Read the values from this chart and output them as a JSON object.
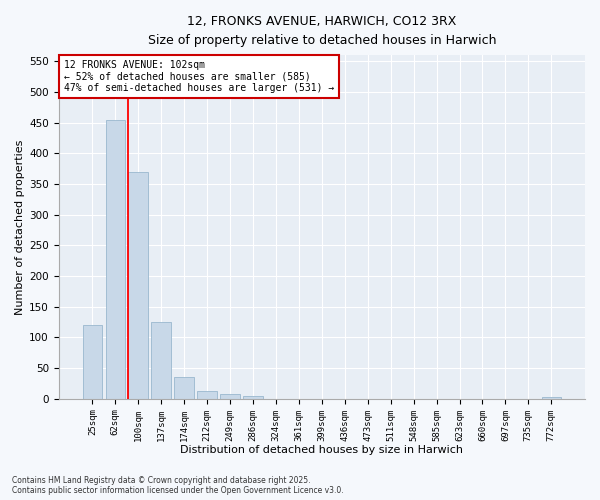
{
  "title_line1": "12, FRONKS AVENUE, HARWICH, CO12 3RX",
  "title_line2": "Size of property relative to detached houses in Harwich",
  "xlabel": "Distribution of detached houses by size in Harwich",
  "ylabel": "Number of detached properties",
  "categories": [
    "25sqm",
    "62sqm",
    "100sqm",
    "137sqm",
    "174sqm",
    "212sqm",
    "249sqm",
    "286sqm",
    "324sqm",
    "361sqm",
    "399sqm",
    "436sqm",
    "473sqm",
    "511sqm",
    "548sqm",
    "585sqm",
    "623sqm",
    "660sqm",
    "697sqm",
    "735sqm",
    "772sqm"
  ],
  "values": [
    120,
    455,
    370,
    125,
    35,
    13,
    8,
    5,
    0,
    0,
    0,
    0,
    0,
    0,
    0,
    0,
    0,
    0,
    0,
    0,
    3
  ],
  "bar_color": "#c8d8e8",
  "bar_edge_color": "#9ab8ce",
  "red_line_index": 2,
  "ylim": [
    0,
    560
  ],
  "yticks": [
    0,
    50,
    100,
    150,
    200,
    250,
    300,
    350,
    400,
    450,
    500,
    550
  ],
  "annotation_text": "12 FRONKS AVENUE: 102sqm\n← 52% of detached houses are smaller (585)\n47% of semi-detached houses are larger (531) →",
  "annotation_box_color": "#ffffff",
  "annotation_box_edge": "#cc0000",
  "footer_line1": "Contains HM Land Registry data © Crown copyright and database right 2025.",
  "footer_line2": "Contains public sector information licensed under the Open Government Licence v3.0.",
  "bg_color": "#f5f8fc",
  "plot_bg_color": "#e8eef5"
}
